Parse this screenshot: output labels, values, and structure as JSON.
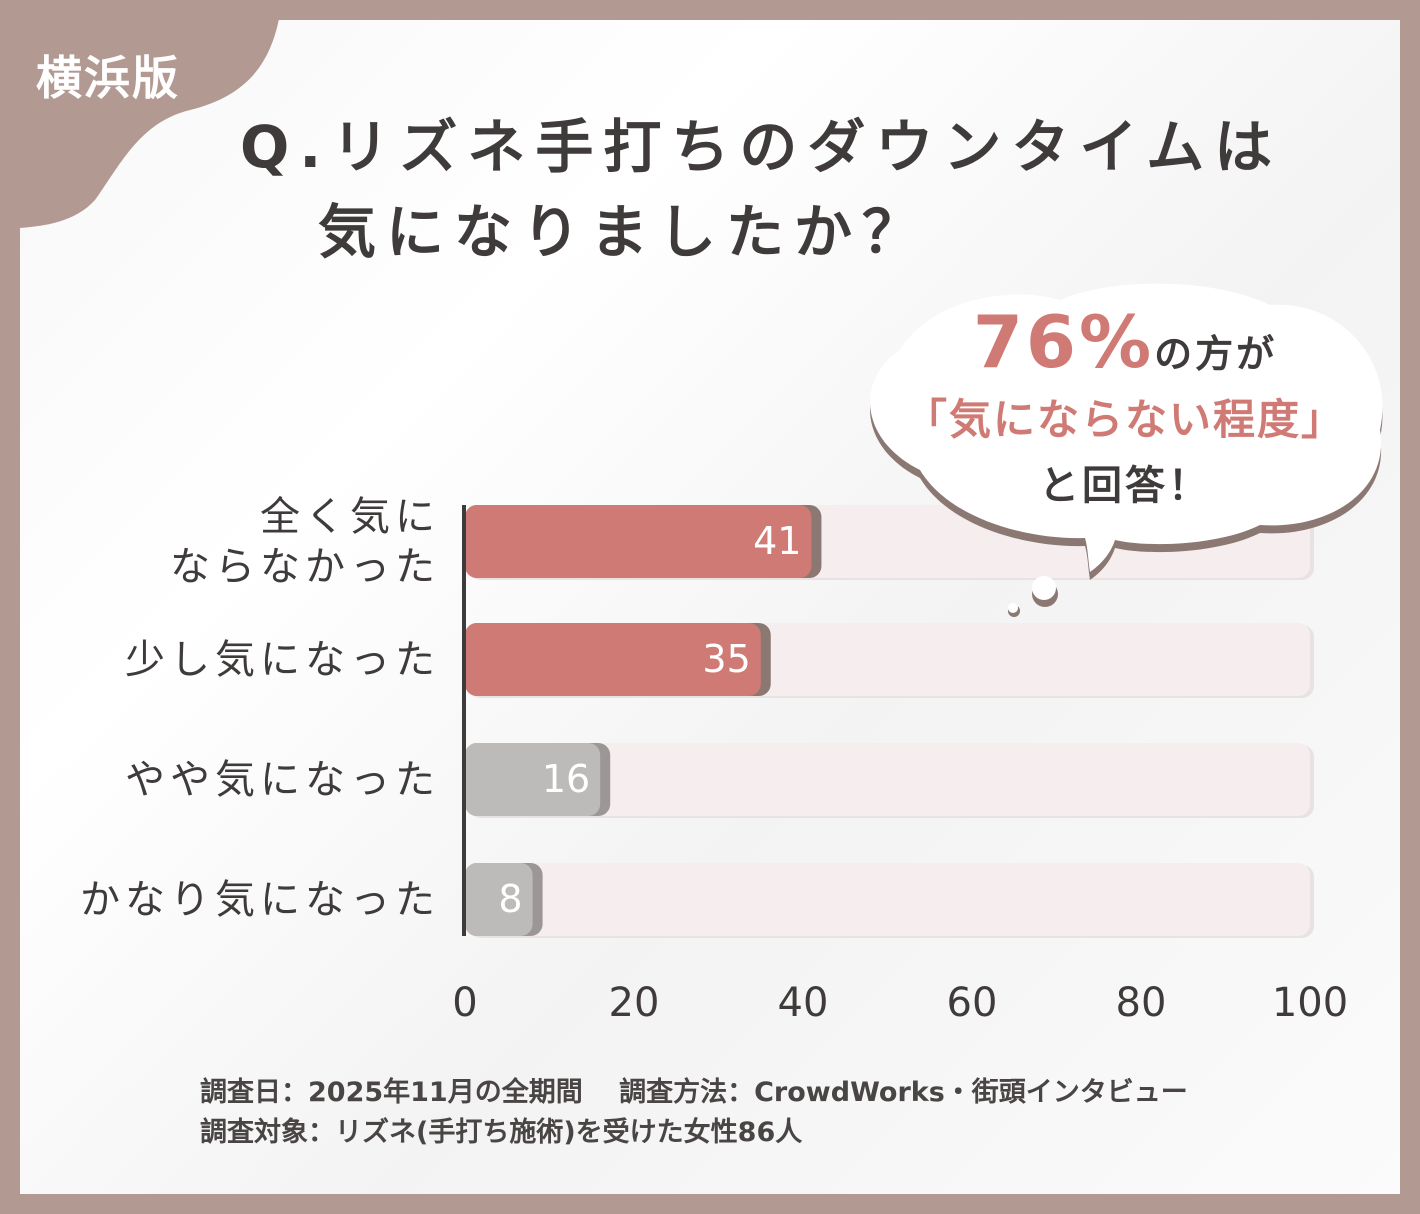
{
  "badge": "横浜版",
  "title": {
    "line1": "Q.リズネ手打ちのダウンタイムは",
    "line2": "気になりましたか？"
  },
  "callout": {
    "percent": "76%",
    "line1_suffix": "の方が",
    "line2": "「気にならない程度」",
    "line3": "と回答！"
  },
  "chart_data": {
    "type": "bar",
    "orientation": "horizontal",
    "categories": [
      "全く気に\nならなかった",
      "少し気になった",
      "やや気になった",
      "かなり気になった"
    ],
    "values": [
      41,
      35,
      16,
      8
    ],
    "value_labels": [
      "41",
      "35",
      "16",
      "8"
    ],
    "xlim": [
      0,
      100
    ],
    "xticks": [
      "0",
      "20",
      "40",
      "60",
      "80",
      "100"
    ],
    "colors": [
      "#cf7a74",
      "#cf7a74",
      "#bdbaba",
      "#bdbaba"
    ],
    "track_color": "#f6eeee",
    "grid": false
  },
  "footer": {
    "line1": "調査日：2025年11月の全期間　 調査方法：CrowdWorks・街頭インタビュー",
    "line2": "調査対象：リズネ(手打ち施術)を受けた女性86人"
  },
  "colors": {
    "frame": "#b29a93",
    "accent": "#cf7a74",
    "text": "#3f3b3b"
  }
}
